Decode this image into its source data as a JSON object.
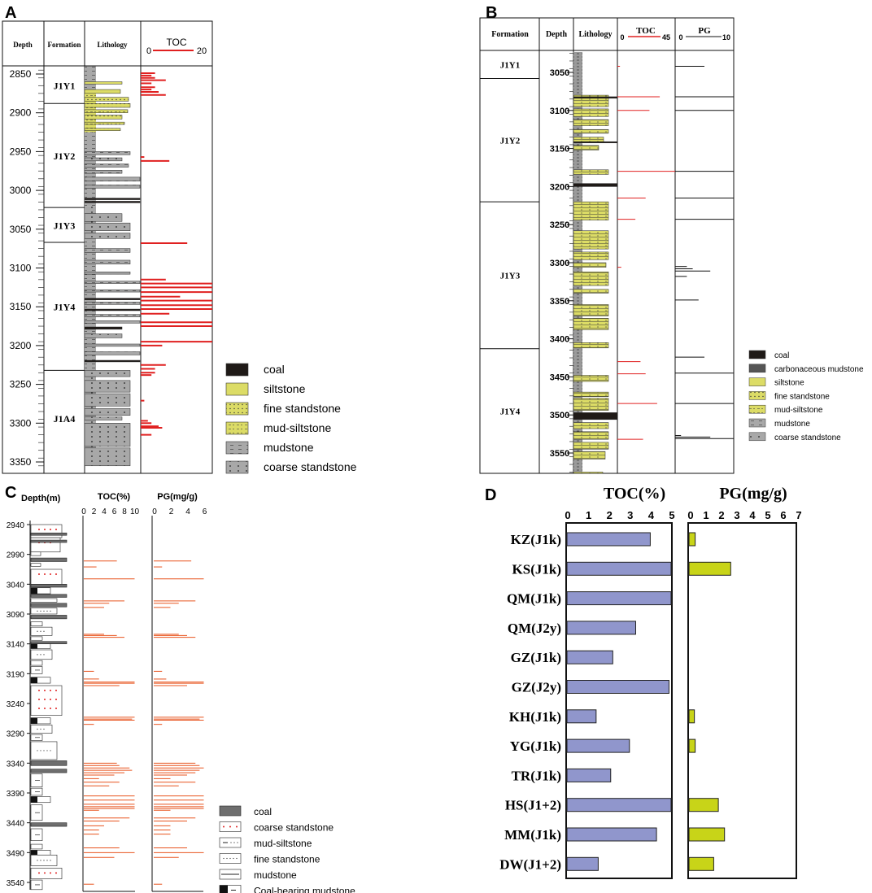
{
  "colors": {
    "toc_red": "#e02020",
    "pg_orange": "#e8541f",
    "toc_bar": "#9096cc",
    "pg_bar": "#c8d418",
    "coal": "#1f1a17",
    "siltstone": "#dcdc66",
    "mudstone": "#a8a8a8",
    "c_coal": "#6e6e6e"
  },
  "panels": {
    "A": {
      "letter": "A",
      "headers": {
        "depth": "Depth",
        "formation": "Formation",
        "lithology": "Lithology",
        "toc": "TOC"
      },
      "toc_scale": {
        "min": "0",
        "max": "20"
      },
      "depth_ticks": [
        "2850",
        "2900",
        "2950",
        "3000",
        "3050",
        "3100",
        "3150",
        "3200",
        "3250",
        "3300",
        "3350"
      ],
      "formations": [
        {
          "name": "J1Y1",
          "top": 2840,
          "bottom": 2888
        },
        {
          "name": "J1Y2",
          "top": 2888,
          "bottom": 3022
        },
        {
          "name": "J1Y3",
          "top": 3022,
          "bottom": 3067
        },
        {
          "name": "J1Y4",
          "top": 3067,
          "bottom": 3232
        },
        {
          "name": "J1A4",
          "top": 3232,
          "bottom": 3355
        }
      ],
      "legend": [
        {
          "label": "coal",
          "type": "coal"
        },
        {
          "label": "siltstone",
          "type": "siltstone"
        },
        {
          "label": "fine standstone",
          "type": "fine"
        },
        {
          "label": "mud-siltstone",
          "type": "mudsilt"
        },
        {
          "label": "mudstone",
          "type": "mudstone"
        },
        {
          "label": "coarse standstone",
          "type": "coarse"
        }
      ]
    },
    "B": {
      "letter": "B",
      "headers": {
        "formation": "Formation",
        "depth": "Depth",
        "lithology": "Lithology",
        "toc": "TOC",
        "pg": "PG"
      },
      "toc_scale": {
        "min": "0",
        "max": "45"
      },
      "pg_scale": {
        "min": "0",
        "max": "10"
      },
      "depth_ticks": [
        "3050",
        "3100",
        "3150",
        "3200",
        "3250",
        "3300",
        "3350",
        "3400",
        "3450",
        "3500",
        "3550"
      ],
      "formations": [
        {
          "name": "J1Y1",
          "top": 3022,
          "bottom": 3058
        },
        {
          "name": "J1Y2",
          "top": 3058,
          "bottom": 3220
        },
        {
          "name": "J1Y3",
          "top": 3220,
          "bottom": 3413
        },
        {
          "name": "J1Y4",
          "top": 3413,
          "bottom": 3580
        }
      ],
      "legend": [
        {
          "label": "coal",
          "type": "coal"
        },
        {
          "label": "carbonaceous mudstone",
          "type": "carbmud"
        },
        {
          "label": "siltstone",
          "type": "siltstone"
        },
        {
          "label": "fine standstone",
          "type": "fine"
        },
        {
          "label": "mud-siltstone",
          "type": "mudsilt"
        },
        {
          "label": "mudstone",
          "type": "mudstone"
        },
        {
          "label": "coarse standstone",
          "type": "coarse"
        }
      ]
    },
    "C": {
      "letter": "C",
      "headers": {
        "depth": "Depth(m)",
        "toc": "TOC(%)",
        "pg": "PG(mg/g)"
      },
      "toc_ticks": [
        "0",
        "2",
        "4",
        "6",
        "8",
        "10"
      ],
      "pg_ticks": [
        "0",
        "2",
        "4",
        "6"
      ],
      "depth_ticks": [
        "2940",
        "2990",
        "3040",
        "3090",
        "3140",
        "3190",
        "3240",
        "3290",
        "3340",
        "3390",
        "3440",
        "3490",
        "3540"
      ],
      "legend": [
        {
          "label": "coal",
          "type": "ccoal"
        },
        {
          "label": "coarse standstone",
          "type": "ccoarse"
        },
        {
          "label": "mud-siltstone",
          "type": "cmudsilt"
        },
        {
          "label": "fine standstone",
          "type": "cfine"
        },
        {
          "label": "mudstone",
          "type": "cmud"
        },
        {
          "label": "Coal-bearing mudstone",
          "type": "ccoalmud"
        }
      ]
    },
    "D": {
      "letter": "D"
    }
  },
  "chart_data": [
    {
      "type": "bar",
      "title": "TOC(%)",
      "orientation": "horizontal",
      "categories": [
        "KZ(J1k)",
        "KS(J1k)",
        "QM(J1k)",
        "QM(J2y)",
        "GZ(J1k)",
        "GZ(J2y)",
        "KH(J1k)",
        "YG(J1k)",
        "TR(J1k)",
        "HS(J1+2)",
        "MM(J1k)",
        "DW(J1+2)"
      ],
      "values": [
        4.0,
        5.0,
        5.0,
        3.3,
        2.2,
        4.9,
        1.4,
        3.0,
        2.1,
        5.0,
        4.3,
        1.5
      ],
      "xlim": [
        0,
        5
      ],
      "ticks": [
        "0",
        "1",
        "2",
        "3",
        "4",
        "5"
      ]
    },
    {
      "type": "bar",
      "title": "PG(mg/g)",
      "orientation": "horizontal",
      "categories": [
        "KZ(J1k)",
        "KS(J1k)",
        "QM(J1k)",
        "QM(J2y)",
        "GZ(J1k)",
        "GZ(J2y)",
        "KH(J1k)",
        "YG(J1k)",
        "TR(J1k)",
        "HS(J1+2)",
        "MM(J1k)",
        "DW(J1+2)"
      ],
      "values": [
        0.4,
        2.7,
        0,
        0,
        0,
        0,
        0.35,
        0.4,
        0,
        1.9,
        2.3,
        1.6
      ],
      "xlim": [
        0,
        7
      ],
      "ticks": [
        "0",
        "1",
        "2",
        "3",
        "4",
        "5",
        "6",
        "7"
      ]
    },
    {
      "type": "bar",
      "title": "Panel A TOC",
      "depth": [
        2849,
        2852,
        2855,
        2858,
        2862,
        2867,
        2870,
        2873,
        2877,
        2957,
        2962,
        3068,
        3115,
        3120,
        3125,
        3131,
        3137,
        3142,
        3148,
        3153,
        3159,
        3170,
        3175,
        3195,
        3200,
        3225,
        3230,
        3235,
        3238,
        3271,
        3297,
        3300,
        3304,
        3306,
        3315
      ],
      "values": [
        4,
        3,
        4,
        7,
        3,
        4,
        3,
        5,
        7,
        1,
        8,
        13,
        7,
        20,
        20,
        20,
        11,
        20,
        20,
        20,
        8,
        20,
        20,
        20,
        6,
        7,
        4,
        4,
        3,
        1,
        2,
        3,
        5,
        6,
        3
      ]
    },
    {
      "type": "bar",
      "title": "Panel B TOC",
      "depth": [
        3042,
        3082,
        3100,
        3180,
        3215,
        3243,
        3306,
        3430,
        3446,
        3485,
        3532
      ],
      "values": [
        2,
        33,
        25,
        45,
        22,
        14,
        3,
        18,
        22,
        31,
        20
      ]
    },
    {
      "type": "bar",
      "title": "Panel B PG",
      "depth": [
        3042,
        3082,
        3100,
        3180,
        3215,
        3243,
        3305,
        3308,
        3311,
        3318,
        3349,
        3424,
        3445,
        3485,
        3527,
        3529,
        3531
      ],
      "values": [
        5,
        10,
        10,
        10,
        10,
        10,
        2,
        3,
        6,
        2,
        4,
        5,
        10,
        10,
        1,
        6,
        10
      ]
    },
    {
      "type": "bar",
      "title": "Panel C TOC",
      "depth": [
        3001,
        3011,
        3031,
        3068,
        3072,
        3079,
        3124,
        3126,
        3129,
        3186,
        3199,
        3204,
        3206,
        3210,
        3263,
        3266,
        3268,
        3275,
        3340,
        3344,
        3348,
        3352,
        3356,
        3360,
        3366,
        3372,
        3378,
        3395,
        3402,
        3409,
        3413,
        3416,
        3419,
        3432,
        3437,
        3445,
        3452,
        3459,
        3482,
        3490,
        3498,
        3543
      ],
      "values": [
        6.5,
        2.5,
        10,
        8,
        5,
        4,
        4,
        6.5,
        8,
        2,
        3,
        10,
        10,
        7,
        10,
        9.5,
        10,
        2,
        6.5,
        7,
        9,
        9.5,
        8,
        6,
        3,
        7,
        5,
        10,
        10,
        10,
        10,
        10,
        3,
        9,
        7,
        4,
        3,
        3,
        7,
        10,
        6,
        2
      ]
    },
    {
      "type": "bar",
      "title": "Panel C PG",
      "depth": [
        3001,
        3011,
        3031,
        3068,
        3072,
        3079,
        3124,
        3126,
        3129,
        3186,
        3199,
        3204,
        3206,
        3210,
        3263,
        3266,
        3268,
        3275,
        3340,
        3344,
        3348,
        3352,
        3356,
        3360,
        3366,
        3372,
        3378,
        3395,
        3402,
        3409,
        3413,
        3416,
        3419,
        3432,
        3437,
        3445,
        3452,
        3459,
        3482,
        3490,
        3498,
        3543
      ],
      "values": [
        4.5,
        1,
        6,
        5,
        3,
        2,
        3,
        4,
        5,
        1,
        1.5,
        6,
        6,
        4,
        6,
        5.5,
        6,
        1,
        5,
        5.5,
        6,
        5.5,
        5,
        4,
        2,
        5,
        3,
        6,
        6,
        6,
        6,
        6,
        2,
        5,
        4,
        2,
        2,
        2,
        4,
        6,
        3,
        1
      ]
    }
  ]
}
